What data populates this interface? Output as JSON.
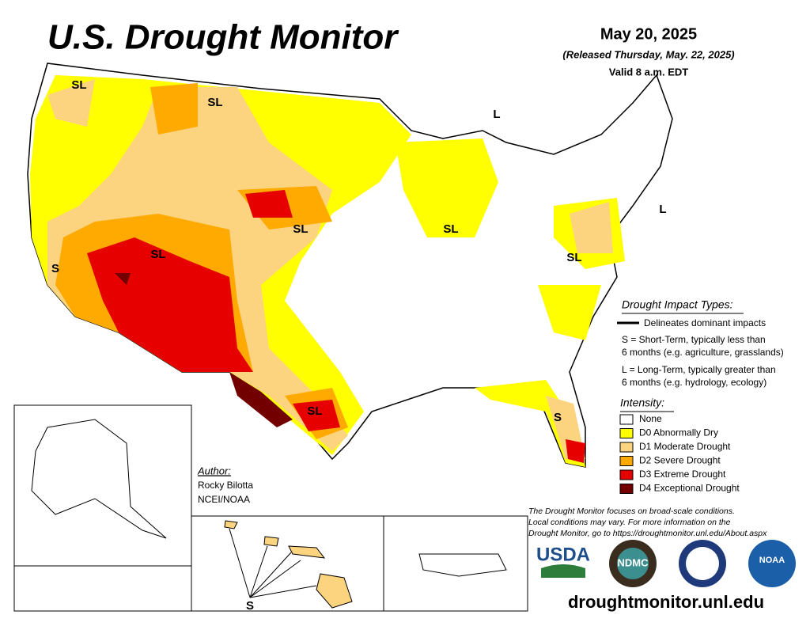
{
  "header": {
    "title": "U.S. Drought Monitor",
    "date": "May 20, 2025",
    "released": "(Released Thursday, May. 22, 2025)",
    "valid": "Valid 8 a.m. EDT"
  },
  "map_labels": [
    "SL",
    "SL",
    "L",
    "L",
    "SL",
    "SL",
    "SL",
    "SL",
    "S",
    "SL",
    "S",
    "S"
  ],
  "impact": {
    "heading": "Drought Impact Types:",
    "delineates": "Delineates dominant impacts",
    "short": [
      "S = Short-Term, typically less than",
      "6 months (e.g. agriculture, grasslands)"
    ],
    "long": [
      "L = Long-Term, typically greater than",
      "6 months (e.g. hydrology, ecology)"
    ]
  },
  "intensity": {
    "heading": "Intensity:",
    "items": [
      {
        "name": "None",
        "color": "#ffffff"
      },
      {
        "name": "D0 Abnormally Dry",
        "color": "#ffff00"
      },
      {
        "name": "D1 Moderate Drought",
        "color": "#fcd37f"
      },
      {
        "name": "D2 Severe Drought",
        "color": "#ffaa00"
      },
      {
        "name": "D3 Extreme Drought",
        "color": "#e60000"
      },
      {
        "name": "D4 Exceptional Drought",
        "color": "#730000"
      }
    ]
  },
  "author": {
    "heading": "Author:",
    "name": "Rocky Bilotta",
    "org": "NCEI/NOAA"
  },
  "disclaimer": [
    "The Drought Monitor focuses on broad-scale conditions.",
    "Local conditions may vary. For more information on the",
    "Drought Monitor, go to https://droughtmonitor.unl.edu/About.aspx"
  ],
  "logos": {
    "usda": "USDA",
    "ndmc": "NDMC",
    "noaa": "NOAA"
  },
  "url": "droughtmonitor.unl.edu"
}
